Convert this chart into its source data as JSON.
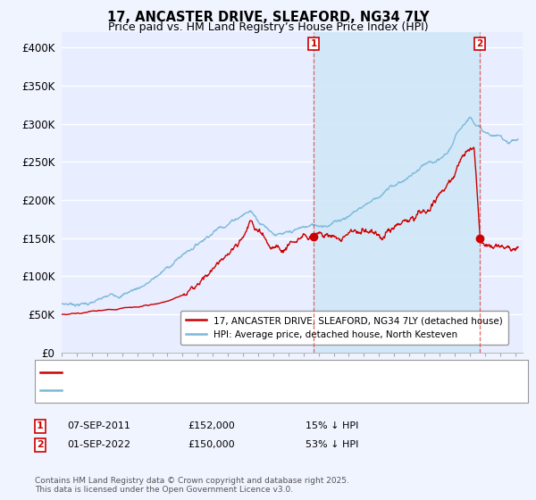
{
  "title": "17, ANCASTER DRIVE, SLEAFORD, NG34 7LY",
  "subtitle": "Price paid vs. HM Land Registry’s House Price Index (HPI)",
  "ylim": [
    0,
    420000
  ],
  "yticks": [
    0,
    50000,
    100000,
    150000,
    200000,
    250000,
    300000,
    350000,
    400000
  ],
  "ytick_labels": [
    "£0",
    "£50K",
    "£100K",
    "£150K",
    "£200K",
    "£250K",
    "£300K",
    "£350K",
    "£400K"
  ],
  "background_color": "#f0f4ff",
  "plot_bg_color": "#e8eeff",
  "grid_color": "#ffffff",
  "hpi_color": "#7ab8d9",
  "price_color": "#cc0000",
  "shade_color": "#d0e8f8",
  "marker1_x": 2011.67,
  "marker2_x": 2022.67,
  "marker1_price": 152000,
  "marker2_price": 150000,
  "legend_line1": "17, ANCASTER DRIVE, SLEAFORD, NG34 7LY (detached house)",
  "legend_line2": "HPI: Average price, detached house, North Kesteven",
  "ann1_date": "07-SEP-2011",
  "ann1_price": "£152,000",
  "ann1_pct": "15% ↓ HPI",
  "ann2_date": "01-SEP-2022",
  "ann2_price": "£150,000",
  "ann2_pct": "53% ↓ HPI",
  "footer": "Contains HM Land Registry data © Crown copyright and database right 2025.\nThis data is licensed under the Open Government Licence v3.0.",
  "hpi_waypoints_x": [
    1995,
    1996,
    1997,
    1998,
    1999,
    2000,
    2001,
    2002,
    2003,
    2004,
    2005,
    2006,
    2007,
    2007.5,
    2008,
    2009,
    2010,
    2011,
    2012,
    2013,
    2014,
    2015,
    2016,
    2017,
    2018,
    2019,
    2020,
    2020.5,
    2021,
    2021.5,
    2022,
    2022.3,
    2022.5,
    2023,
    2023.5,
    2024,
    2024.5,
    2025.2
  ],
  "hpi_waypoints_y": [
    63000,
    65000,
    68000,
    72000,
    78000,
    88000,
    100000,
    115000,
    133000,
    150000,
    170000,
    185000,
    200000,
    205000,
    195000,
    183000,
    178000,
    183000,
    186000,
    193000,
    205000,
    220000,
    235000,
    248000,
    260000,
    272000,
    270000,
    278000,
    295000,
    315000,
    328000,
    325000,
    322000,
    310000,
    305000,
    302000,
    298000,
    302000
  ],
  "red_waypoints_x": [
    1995,
    1996,
    1997,
    1998,
    1999,
    2000,
    2001,
    2002,
    2003,
    2004,
    2005,
    2006,
    2007,
    2007.5,
    2008,
    2009,
    2009.5,
    2010,
    2010.5,
    2011,
    2011.67,
    2012,
    2013,
    2014,
    2015,
    2015.5,
    2016,
    2016.5,
    2017,
    2017.5,
    2018,
    2018.5,
    2019,
    2019.5,
    2020,
    2020.5,
    2021,
    2021.3,
    2021.6,
    2022,
    2022.3,
    2022.67,
    2022.8,
    2023,
    2023.5,
    2024,
    2024.5,
    2025.2
  ],
  "red_waypoints_y": [
    50000,
    52000,
    54000,
    56000,
    57000,
    60000,
    64000,
    68000,
    75000,
    90000,
    108000,
    130000,
    155000,
    173000,
    160000,
    142000,
    138000,
    143000,
    148000,
    152000,
    152000,
    153000,
    155000,
    158000,
    162000,
    158000,
    155000,
    160000,
    165000,
    168000,
    172000,
    180000,
    188000,
    200000,
    210000,
    222000,
    238000,
    255000,
    268000,
    270000,
    268000,
    150000,
    145000,
    142000,
    140000,
    138000,
    137000,
    140000
  ]
}
